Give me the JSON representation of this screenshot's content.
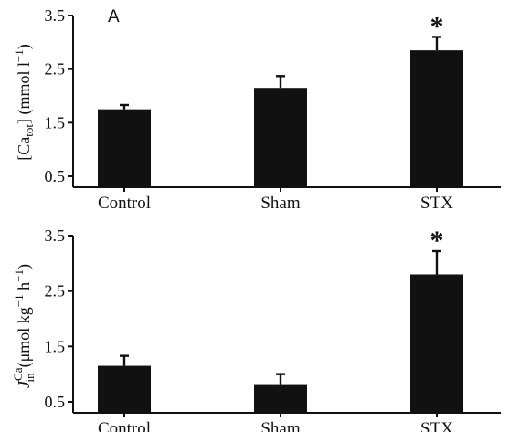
{
  "chart_data": [
    {
      "type": "bar",
      "panel_label": "A",
      "categories": [
        "Control",
        "Sham",
        "STX"
      ],
      "values": [
        1.75,
        2.15,
        2.85
      ],
      "errors": [
        0.08,
        0.22,
        0.25
      ],
      "significant": [
        false,
        false,
        true
      ],
      "significance_marker": "*",
      "ylabel": "[Ca_tot] (mmol l^-1)",
      "ylabel_parts": {
        "pre": "[Ca",
        "sub": "tot",
        "mid": "] (mmol l",
        "sup": "−1",
        "post": ")"
      },
      "ylim": [
        0,
        3.5
      ],
      "yticks": [
        0.5,
        1.5,
        2.5,
        3.5
      ],
      "yticklabels": [
        "0.5",
        "1.5",
        "2.5",
        "3.5"
      ],
      "grid": false,
      "bar_color": "#111111"
    },
    {
      "type": "bar",
      "panel_label": "",
      "categories": [
        "Control",
        "Sham",
        "STX"
      ],
      "values": [
        1.15,
        0.82,
        2.8
      ],
      "errors": [
        0.18,
        0.18,
        0.42
      ],
      "significant": [
        false,
        false,
        true
      ],
      "significance_marker": "*",
      "ylabel": "J_in^Ca (μmol kg^-1 h^-1)",
      "ylabel_parts": {
        "j": "J",
        "sub": "in",
        "sup": "Ca",
        "pre": "(μmol kg",
        "sup2": "−1",
        "mid": " h",
        "sup3": "−1",
        "post": ")"
      },
      "ylim": [
        0,
        3.5
      ],
      "yticks": [
        0.5,
        1.5,
        2.5,
        3.5
      ],
      "yticklabels": [
        "0.5",
        "1.5",
        "2.5",
        "3.5"
      ],
      "grid": false,
      "bar_color": "#111111"
    }
  ]
}
